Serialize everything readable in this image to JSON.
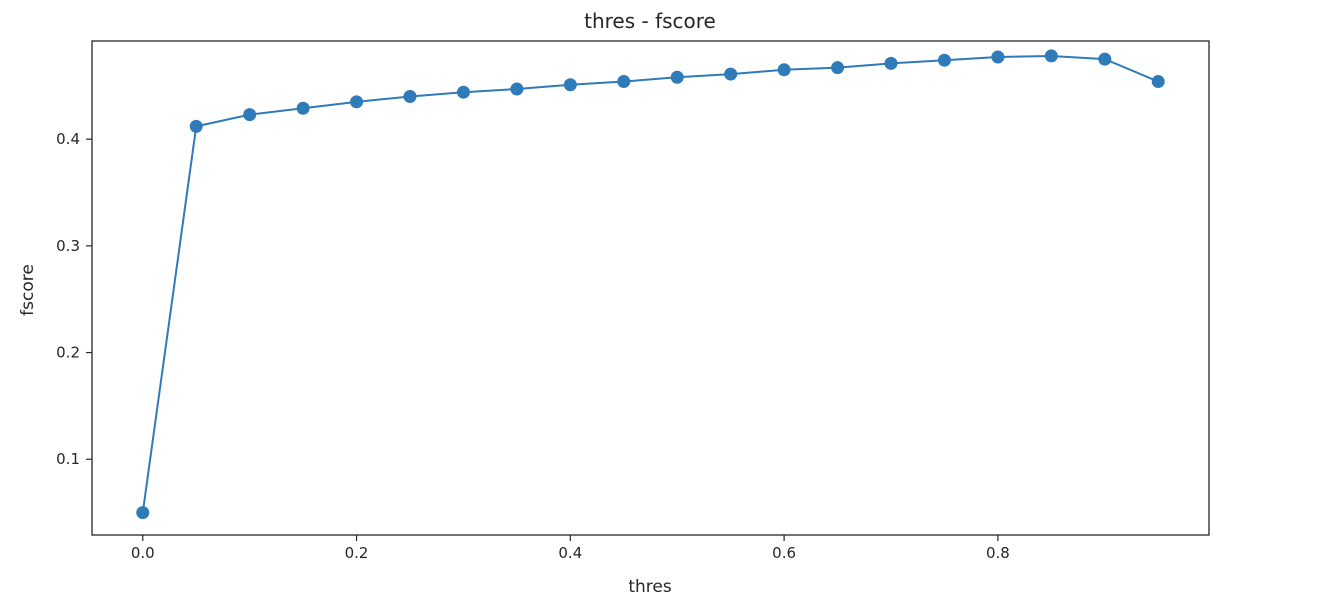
{
  "chart_data": {
    "type": "line",
    "title": "thres - fscore",
    "xlabel": "thres",
    "ylabel": "fscore",
    "xlim": [
      -0.0475,
      0.9975
    ],
    "ylim": [
      0.029,
      0.492
    ],
    "xticks": [
      0.0,
      0.2,
      0.4,
      0.6,
      0.8
    ],
    "xtick_labels": [
      "0.0",
      "0.2",
      "0.4",
      "0.6",
      "0.8"
    ],
    "yticks": [
      0.1,
      0.2,
      0.3,
      0.4
    ],
    "ytick_labels": [
      "0.1",
      "0.2",
      "0.3",
      "0.4"
    ],
    "grid": false,
    "markers": true,
    "color": "#2f7ab9",
    "series": [
      {
        "x": [
          0.0,
          0.05,
          0.1,
          0.15,
          0.2,
          0.25,
          0.3,
          0.35,
          0.4,
          0.45,
          0.5,
          0.55,
          0.6,
          0.65,
          0.7,
          0.75,
          0.8,
          0.85,
          0.9,
          0.95
        ],
        "values": [
          0.05,
          0.412,
          0.423,
          0.429,
          0.435,
          0.44,
          0.444,
          0.447,
          0.451,
          0.454,
          0.458,
          0.461,
          0.465,
          0.467,
          0.471,
          0.474,
          0.477,
          0.478,
          0.475,
          0.454
        ]
      }
    ]
  }
}
